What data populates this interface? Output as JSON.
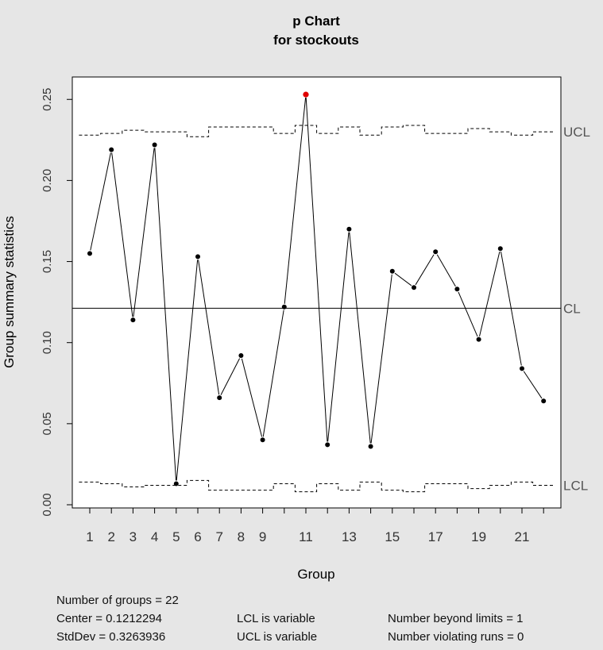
{
  "chart_data": {
    "type": "line",
    "title": "p Chart",
    "subtitle": "for stockouts",
    "xlabel": "Group",
    "ylabel": "Group summary statistics",
    "ylim": [
      0,
      0.25
    ],
    "y_ticks": [
      "0.00",
      "0.05",
      "0.10",
      "0.15",
      "0.20",
      "0.25"
    ],
    "x_ticks": [
      "1",
      "2",
      "3",
      "4",
      "5",
      "6",
      "7",
      "8",
      "9",
      "11",
      "13",
      "15",
      "17",
      "19",
      "21"
    ],
    "x": [
      1,
      2,
      3,
      4,
      5,
      6,
      7,
      8,
      9,
      10,
      11,
      12,
      13,
      14,
      15,
      16,
      17,
      18,
      19,
      20,
      21,
      22
    ],
    "values": [
      0.155,
      0.219,
      0.114,
      0.222,
      0.013,
      0.153,
      0.066,
      0.092,
      0.04,
      0.122,
      0.253,
      0.037,
      0.17,
      0.036,
      0.144,
      0.134,
      0.156,
      0.133,
      0.102,
      0.158,
      0.084,
      0.064
    ],
    "center": 0.1212294,
    "ucl": [
      0.228,
      0.229,
      0.231,
      0.23,
      0.23,
      0.227,
      0.233,
      0.233,
      0.233,
      0.229,
      0.234,
      0.229,
      0.233,
      0.228,
      0.233,
      0.234,
      0.229,
      0.229,
      0.232,
      0.23,
      0.228,
      0.23
    ],
    "lcl": [
      0.014,
      0.013,
      0.011,
      0.012,
      0.012,
      0.015,
      0.009,
      0.009,
      0.009,
      0.013,
      0.008,
      0.013,
      0.009,
      0.014,
      0.009,
      0.008,
      0.013,
      0.013,
      0.01,
      0.012,
      0.014,
      0.012
    ],
    "limit_labels": {
      "ucl": "UCL",
      "cl": "CL",
      "lcl": "LCL"
    },
    "beyond_limits_indices": [
      10
    ],
    "colors": {
      "points": "#000000",
      "beyond_limits": "#e00000",
      "background": "#e6e6e6",
      "plot_bg": "#ffffff",
      "limit_label": "#555555"
    }
  },
  "stats": {
    "groups": "Number of groups = 22",
    "center": "Center = 0.1212294",
    "stddev": "StdDev = 0.3263936",
    "lcl_note": "LCL is variable",
    "ucl_note": "UCL is variable",
    "beyond": "Number beyond limits = 1",
    "runs": "Number violating runs = 0"
  }
}
